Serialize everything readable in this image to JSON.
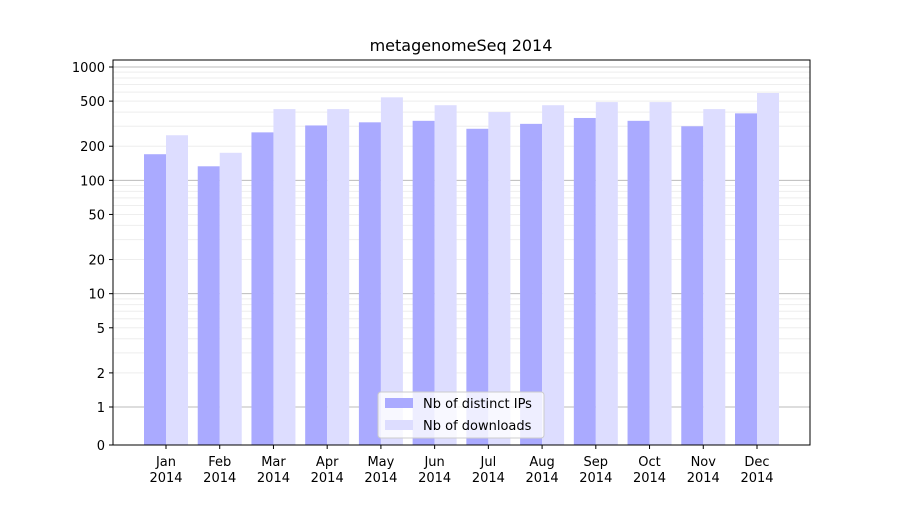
{
  "chart_data": {
    "type": "bar",
    "title": "metagenomeSeq 2014",
    "xlabel": "",
    "ylabel": "",
    "y_scale": "symlog",
    "ylim": [
      0,
      1000
    ],
    "y_ticks": [
      0,
      1,
      2,
      5,
      10,
      20,
      50,
      100,
      200,
      500,
      1000
    ],
    "y_tick_labels": [
      "0",
      "1",
      "2",
      "5",
      "10",
      "20",
      "50",
      "100",
      "200",
      "500",
      "1000"
    ],
    "categories": [
      {
        "month": "Jan",
        "year": "2014"
      },
      {
        "month": "Feb",
        "year": "2014"
      },
      {
        "month": "Mar",
        "year": "2014"
      },
      {
        "month": "Apr",
        "year": "2014"
      },
      {
        "month": "May",
        "year": "2014"
      },
      {
        "month": "Jun",
        "year": "2014"
      },
      {
        "month": "Jul",
        "year": "2014"
      },
      {
        "month": "Aug",
        "year": "2014"
      },
      {
        "month": "Sep",
        "year": "2014"
      },
      {
        "month": "Oct",
        "year": "2014"
      },
      {
        "month": "Nov",
        "year": "2014"
      },
      {
        "month": "Dec",
        "year": "2014"
      }
    ],
    "series": [
      {
        "name": "Nb of distinct IPs",
        "color": "#aaaaff",
        "values": [
          170,
          133,
          265,
          305,
          325,
          335,
          285,
          315,
          355,
          335,
          300,
          390
        ]
      },
      {
        "name": "Nb of downloads",
        "color": "#ddddff",
        "values": [
          250,
          175,
          425,
          425,
          540,
          460,
          400,
          460,
          490,
          490,
          425,
          590
        ]
      }
    ],
    "grid": true,
    "legend_position": "bottom-center"
  }
}
